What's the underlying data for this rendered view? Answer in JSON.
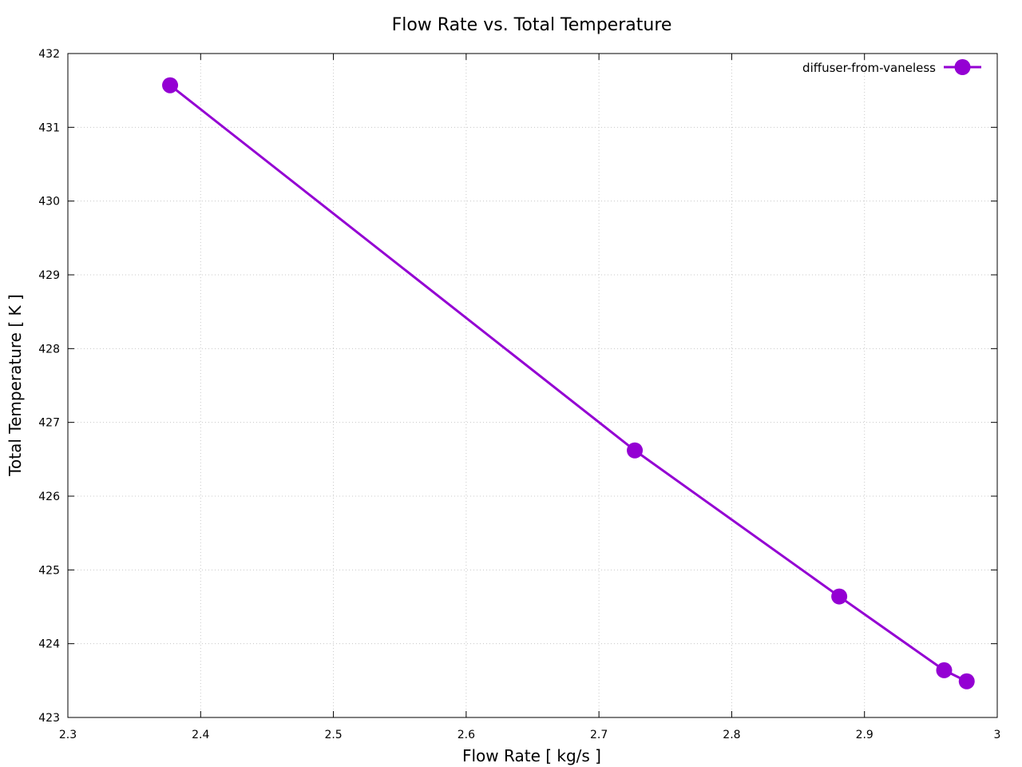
{
  "chart_data": {
    "type": "line",
    "title": "Flow Rate vs. Total Temperature",
    "xlabel": "Flow Rate [ kg/s ]",
    "ylabel": "Total Temperature [ K ]",
    "xlim": [
      2.3,
      3.0
    ],
    "ylim": [
      423,
      432
    ],
    "xticks": [
      "2.3",
      "2.4",
      "2.5",
      "2.6",
      "2.7",
      "2.8",
      "2.9",
      "3"
    ],
    "yticks": [
      "423",
      "424",
      "425",
      "426",
      "427",
      "428",
      "429",
      "430",
      "431",
      "432"
    ],
    "grid": true,
    "legend_position": "top-right",
    "series": [
      {
        "name": "diffuser-from-vaneless",
        "color": "#9400d3",
        "marker": "circle",
        "x": [
          2.377,
          2.727,
          2.881,
          2.96,
          2.977
        ],
        "y": [
          431.57,
          426.62,
          424.64,
          423.64,
          423.49
        ]
      }
    ]
  }
}
